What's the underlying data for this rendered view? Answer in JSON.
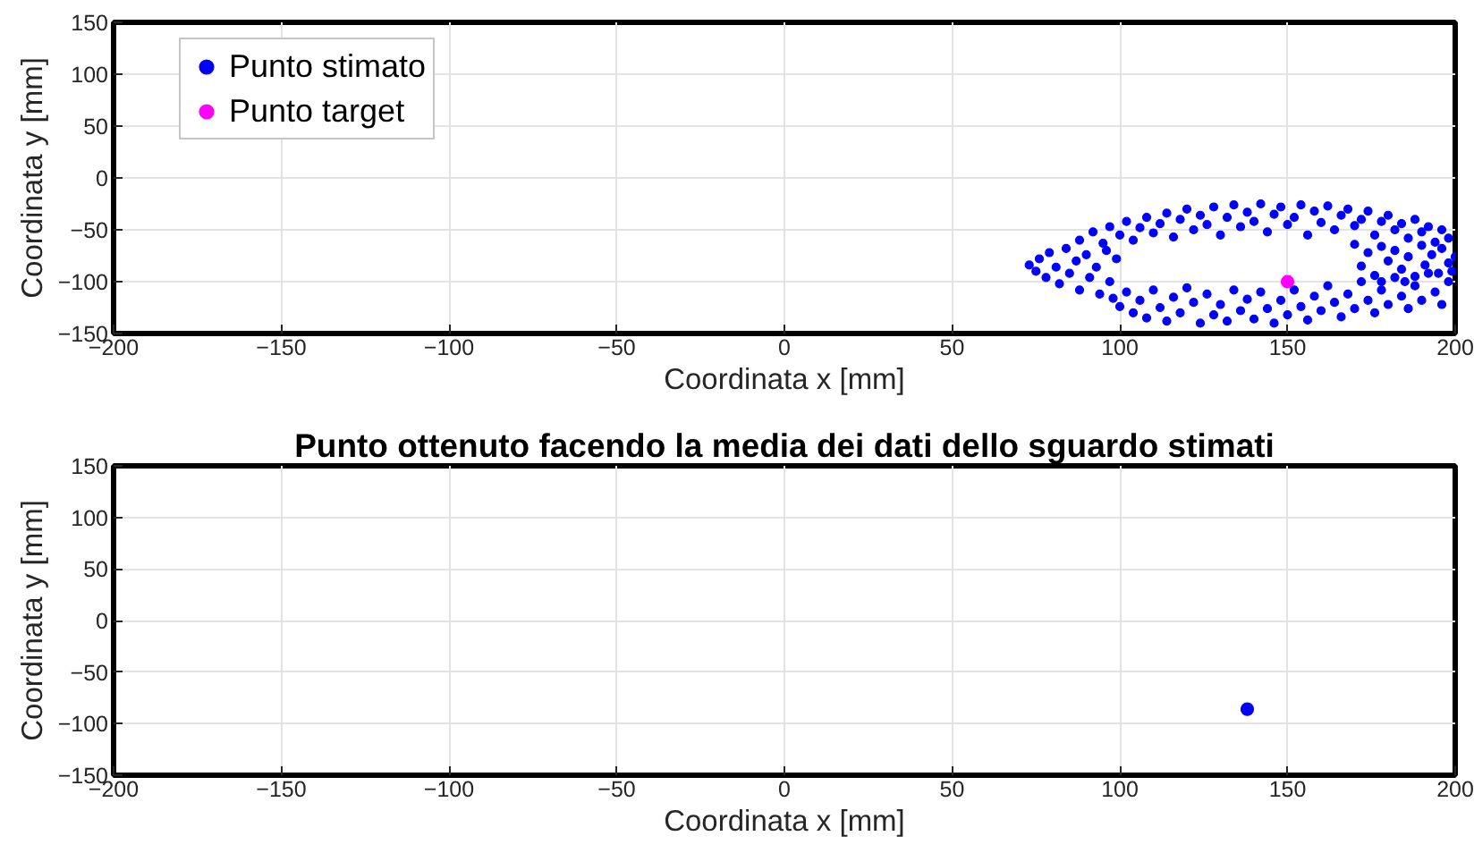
{
  "chart_data": [
    {
      "type": "scatter",
      "xlabel": "Coordinata x [mm]",
      "ylabel": "Coordinata y [mm]",
      "xlim": [
        -200,
        200
      ],
      "ylim": [
        -150,
        150
      ],
      "xticks": [
        -200,
        -150,
        -100,
        -50,
        0,
        50,
        100,
        150,
        200
      ],
      "yticks": [
        -150,
        -100,
        -50,
        0,
        50,
        100,
        150
      ],
      "grid": true,
      "legend": "top left",
      "marker": "circle",
      "series": [
        {
          "name": "Punto stimato",
          "color": "#0000ff",
          "x": [
            88,
            92,
            95,
            97,
            100,
            102,
            104,
            106,
            108,
            110,
            112,
            114,
            116,
            118,
            120,
            122,
            124,
            126,
            128,
            130,
            132,
            134,
            136,
            138,
            140,
            142,
            144,
            146,
            148,
            150,
            152,
            154,
            156,
            158,
            160,
            162,
            164,
            166,
            168,
            170,
            172,
            174,
            176,
            178,
            180,
            182,
            184,
            186,
            188,
            190,
            192,
            194,
            196,
            198,
            73,
            75,
            76,
            78,
            79,
            81,
            82,
            84,
            85,
            87,
            88,
            90,
            91,
            93,
            94,
            96,
            97,
            99,
            98,
            100,
            102,
            104,
            106,
            108,
            110,
            112,
            114,
            116,
            118,
            120,
            122,
            124,
            126,
            128,
            130,
            132,
            134,
            136,
            138,
            140,
            142,
            144,
            146,
            148,
            150,
            152,
            154,
            156,
            158,
            160,
            162,
            164,
            166,
            168,
            170,
            172,
            174,
            176,
            178,
            180,
            182,
            184,
            186,
            188,
            190,
            192,
            194,
            196,
            198,
            170,
            172,
            174,
            176,
            178,
            180,
            182,
            184,
            186,
            188,
            190,
            191,
            193,
            195,
            196,
            198,
            199,
            200,
            185,
            178
          ],
          "values": [
            -60,
            -52,
            -63,
            -47,
            -55,
            -42,
            -60,
            -48,
            -38,
            -53,
            -44,
            -34,
            -57,
            -40,
            -30,
            -50,
            -36,
            -45,
            -28,
            -55,
            -38,
            -26,
            -47,
            -33,
            -42,
            -25,
            -52,
            -35,
            -28,
            -45,
            -38,
            -26,
            -55,
            -32,
            -43,
            -27,
            -50,
            -36,
            -30,
            -46,
            -40,
            -32,
            -55,
            -42,
            -36,
            -50,
            -44,
            -58,
            -40,
            -52,
            -47,
            -62,
            -50,
            -58,
            -84,
            -90,
            -78,
            -96,
            -72,
            -86,
            -102,
            -68,
            -92,
            -80,
            -108,
            -74,
            -96,
            -86,
            -112,
            -70,
            -100,
            -78,
            -116,
            -124,
            -110,
            -130,
            -118,
            -135,
            -108,
            -125,
            -138,
            -115,
            -130,
            -106,
            -120,
            -140,
            -112,
            -132,
            -122,
            -138,
            -108,
            -128,
            -117,
            -136,
            -110,
            -126,
            -140,
            -118,
            -132,
            -108,
            -124,
            -137,
            -114,
            -128,
            -104,
            -120,
            -134,
            -112,
            -126,
            -100,
            -118,
            -130,
            -108,
            -122,
            -96,
            -114,
            -126,
            -104,
            -118,
            -92,
            -110,
            -122,
            -100,
            -64,
            -85,
            -72,
            -94,
            -66,
            -80,
            -70,
            -88,
            -76,
            -95,
            -65,
            -84,
            -74,
            -92,
            -68,
            -82,
            -90,
            -76,
            -100,
            -100
          ]
        },
        {
          "name": "Punto target",
          "color": "#ff00ff",
          "x": [
            150
          ],
          "values": [
            -100
          ]
        }
      ]
    },
    {
      "type": "scatter",
      "title": "Punto ottenuto facendo la media dei dati dello sguardo stimati",
      "xlabel": "Coordinata x [mm]",
      "ylabel": "Coordinata y [mm]",
      "xlim": [
        -200,
        200
      ],
      "ylim": [
        -150,
        150
      ],
      "xticks": [
        -200,
        -150,
        -100,
        -50,
        0,
        50,
        100,
        150,
        200
      ],
      "yticks": [
        -150,
        -100,
        -50,
        0,
        50,
        100,
        150
      ],
      "grid": true,
      "marker": "circle",
      "series": [
        {
          "color": "#0000ff",
          "x": [
            138
          ],
          "values": [
            -86
          ]
        }
      ]
    }
  ]
}
